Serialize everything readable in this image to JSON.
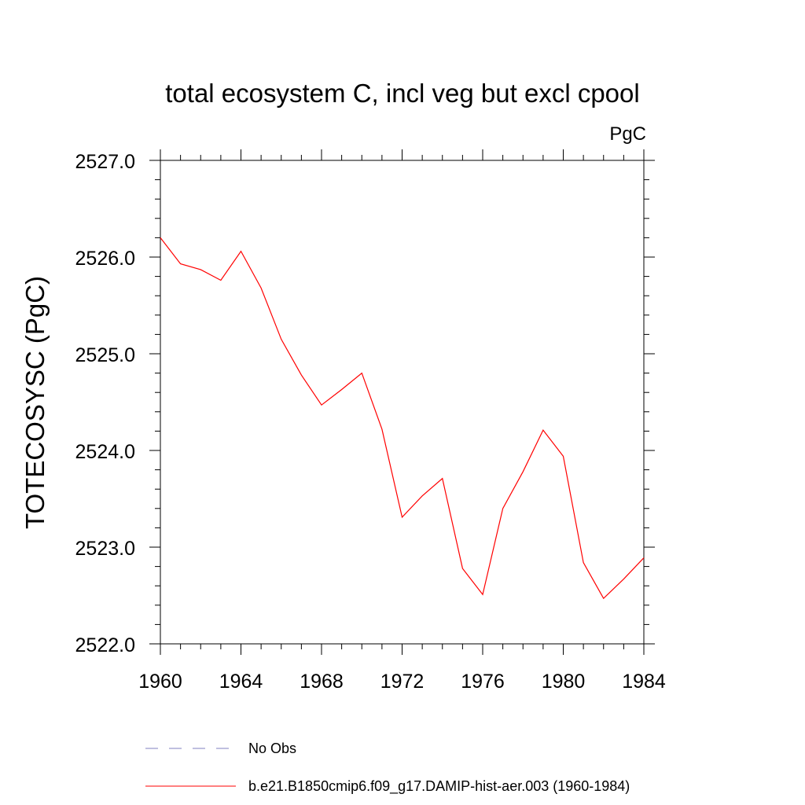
{
  "chart_data": {
    "type": "line",
    "title": "total ecosystem C, incl veg but excl cpool",
    "units": "PgC",
    "ylabel": "TOTECOSYSC  (PgC)",
    "xlabel": "",
    "xlim": [
      1960,
      1984
    ],
    "ylim": [
      2522.0,
      2527.0
    ],
    "x_ticks": [
      "1960",
      "1964",
      "1968",
      "1972",
      "1976",
      "1980",
      "1984"
    ],
    "y_ticks": [
      "2522.0",
      "2523.0",
      "2524.0",
      "2525.0",
      "2526.0",
      "2527.0"
    ],
    "series": [
      {
        "name": "b.e21.B1850cmip6.f09_g17.DAMIP-hist-aer.003 (1960-1984)",
        "color": "#ff0000",
        "x": [
          1960,
          1961,
          1962,
          1963,
          1964,
          1965,
          1966,
          1967,
          1968,
          1969,
          1970,
          1971,
          1972,
          1973,
          1974,
          1975,
          1976,
          1977,
          1978,
          1979,
          1980,
          1981,
          1982,
          1983,
          1984
        ],
        "y": [
          2526.2,
          2525.93,
          2525.87,
          2525.76,
          2526.06,
          2525.68,
          2525.15,
          2524.78,
          2524.47,
          2524.63,
          2524.8,
          2524.22,
          2523.31,
          2523.53,
          2523.71,
          2522.78,
          2522.51,
          2523.4,
          2523.78,
          2524.21,
          2523.94,
          2522.84,
          2522.47,
          2522.67,
          2522.89
        ]
      }
    ],
    "legend": {
      "placement": "bottom",
      "entries": [
        {
          "label": "No Obs",
          "style": "dashed",
          "color": "#8080c0"
        },
        {
          "label": "b.e21.B1850cmip6.f09_g17.DAMIP-hist-aer.003 (1960-1984)",
          "style": "solid",
          "color": "#ff0000"
        }
      ]
    },
    "grid": false
  }
}
